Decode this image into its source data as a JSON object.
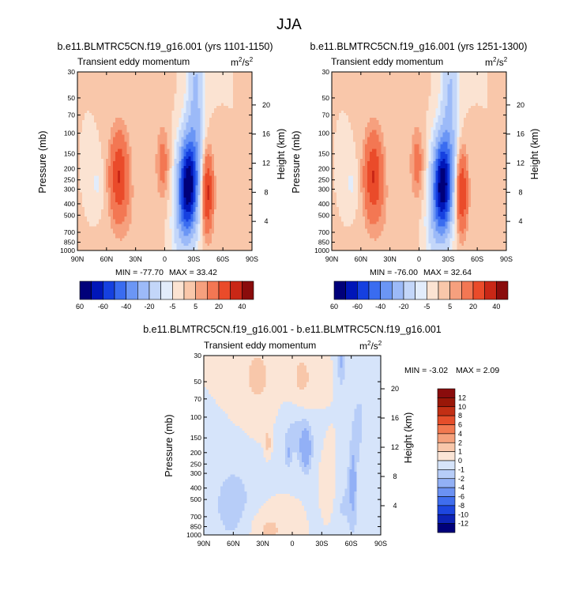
{
  "figure_title": "JJA",
  "chart_data": [
    {
      "type": "heatmap",
      "id": "panel-1",
      "title": "b.e11.BLMTRC5CN.f19_g16.001 (yrs 1101-1150)",
      "subtitle_left": "Transient eddy momentum",
      "units_base": "m",
      "units_sup1": "2",
      "units_mid": "/s",
      "units_sup2": "2",
      "ylabel": "Pressure (mb)",
      "ylabel_right": "Height (km)",
      "x_ticks": [
        "90N",
        "60N",
        "30N",
        "0",
        "30S",
        "60S",
        "90S"
      ],
      "y_ticks": [
        "30",
        "50",
        "70",
        "100",
        "150",
        "200",
        "250",
        "300",
        "400",
        "500",
        "700",
        "850",
        "1000"
      ],
      "y_ticks_right": [
        "20",
        "16",
        "12",
        "8",
        "4"
      ],
      "min_label": "MIN = -77.70",
      "max_label": "MAX = 33.42",
      "min": -77.7,
      "max": 33.42,
      "colorbar_ticks": [
        "-60",
        "-40",
        "-20",
        "-5",
        "5",
        "20",
        "40",
        "60"
      ],
      "features": [
        {
          "lat": -24,
          "p": 280,
          "sx": 7,
          "sy": 0.65,
          "amp": -78
        },
        {
          "lat": -15,
          "p": 650,
          "sx": 7,
          "sy": 0.5,
          "amp": -10
        },
        {
          "lat": -32,
          "p": 50,
          "sx": 6,
          "sy": 1.1,
          "amp": -22
        },
        {
          "lat": 47,
          "p": 230,
          "sx": 7,
          "sy": 0.6,
          "amp": 30
        },
        {
          "lat": -44,
          "p": 320,
          "sx": 4.5,
          "sy": 0.55,
          "amp": 33
        },
        {
          "lat": 2,
          "p": 180,
          "sx": 4.5,
          "sy": 0.45,
          "amp": 14
        },
        {
          "lat": 70,
          "p": 270,
          "sx": 5,
          "sy": 0.35,
          "amp": -6
        },
        {
          "lat": 28,
          "p": 600,
          "sx": 20,
          "sy": 0.6,
          "amp": 3
        },
        {
          "lat": 15,
          "p": 45,
          "sx": 14,
          "sy": 0.7,
          "amp": 2
        }
      ]
    },
    {
      "type": "heatmap",
      "id": "panel-2",
      "title": "b.e11.BLMTRC5CN.f19_g16.001 (yrs 1251-1300)",
      "subtitle_left": "Transient eddy momentum",
      "units_base": "m",
      "units_sup1": "2",
      "units_mid": "/s",
      "units_sup2": "2",
      "ylabel": "Pressure (mb)",
      "ylabel_right": "Height (km)",
      "x_ticks": [
        "90N",
        "60N",
        "30N",
        "0",
        "30S",
        "60S",
        "90S"
      ],
      "y_ticks": [
        "30",
        "50",
        "70",
        "100",
        "150",
        "200",
        "250",
        "300",
        "400",
        "500",
        "700",
        "850",
        "1000"
      ],
      "y_ticks_right": [
        "20",
        "16",
        "12",
        "8",
        "4"
      ],
      "min_label": "MIN = -76.00",
      "max_label": "MAX = 32.64",
      "min": -76.0,
      "max": 32.64,
      "colorbar_ticks": [
        "-60",
        "-40",
        "-20",
        "-5",
        "5",
        "20",
        "40",
        "60"
      ],
      "features": [
        {
          "lat": -24,
          "p": 280,
          "sx": 7,
          "sy": 0.65,
          "amp": -76
        },
        {
          "lat": -15,
          "p": 650,
          "sx": 7,
          "sy": 0.5,
          "amp": -10
        },
        {
          "lat": -32,
          "p": 50,
          "sx": 6,
          "sy": 1.1,
          "amp": -21
        },
        {
          "lat": 47,
          "p": 230,
          "sx": 7,
          "sy": 0.6,
          "amp": 30
        },
        {
          "lat": -44,
          "p": 320,
          "sx": 4.5,
          "sy": 0.55,
          "amp": 32
        },
        {
          "lat": 2,
          "p": 180,
          "sx": 4.5,
          "sy": 0.45,
          "amp": 14
        },
        {
          "lat": 70,
          "p": 270,
          "sx": 5,
          "sy": 0.35,
          "amp": -6
        },
        {
          "lat": 28,
          "p": 600,
          "sx": 20,
          "sy": 0.6,
          "amp": 3
        },
        {
          "lat": 15,
          "p": 45,
          "sx": 14,
          "sy": 0.7,
          "amp": 2
        }
      ]
    },
    {
      "type": "heatmap",
      "id": "panel-diff",
      "title": "b.e11.BLMTRC5CN.f19_g16.001 - b.e11.BLMTRC5CN.f19_g16.001",
      "subtitle_left": "Transient eddy momentum",
      "units_base": "m",
      "units_sup1": "2",
      "units_mid": "/s",
      "units_sup2": "2",
      "ylabel": "Pressure (mb)",
      "ylabel_right": "Height (km)",
      "x_ticks": [
        "90N",
        "60N",
        "30N",
        "0",
        "30S",
        "60S",
        "90S"
      ],
      "y_ticks": [
        "30",
        "50",
        "70",
        "100",
        "150",
        "200",
        "250",
        "300",
        "400",
        "500",
        "700",
        "850",
        "1000"
      ],
      "y_ticks_right": [
        "20",
        "16",
        "12",
        "8",
        "4"
      ],
      "min_label": "MIN = -3.02",
      "max_label": "MAX =  2.09",
      "min": -3.02,
      "max": 2.09,
      "colorbar_ticks": [
        "12",
        "10",
        "8",
        "6",
        "4",
        "2",
        "1",
        "0",
        "-1",
        "-2",
        "-4",
        "-6",
        "-8",
        "-10",
        "-12"
      ],
      "features": [
        {
          "lat": -14,
          "p": 190,
          "sx": 4,
          "sy": 0.3,
          "amp": -3
        },
        {
          "lat": 4,
          "p": 205,
          "sx": 2.5,
          "sy": 0.2,
          "amp": -1.5
        },
        {
          "lat": 25,
          "p": 165,
          "sx": 2,
          "sy": 0.15,
          "amp": 2
        },
        {
          "lat": -5,
          "p": 130,
          "sx": 12,
          "sy": 0.45,
          "amp": -1.4
        },
        {
          "lat": -50,
          "p": 32,
          "sx": 3,
          "sy": 0.4,
          "amp": -2.2
        },
        {
          "lat": -62,
          "p": 350,
          "sx": 3,
          "sy": 0.6,
          "amp": -2.3
        },
        {
          "lat": -68,
          "p": 110,
          "sx": 5,
          "sy": 0.5,
          "amp": -1.3
        },
        {
          "lat": -48,
          "p": 550,
          "sx": 12,
          "sy": 0.6,
          "amp": -1.2
        },
        {
          "lat": 60,
          "p": 550,
          "sx": 18,
          "sy": 0.7,
          "amp": -1.4
        },
        {
          "lat": -38,
          "p": 420,
          "sx": 6,
          "sy": 0.5,
          "amp": 1.5
        },
        {
          "lat": 35,
          "p": 45,
          "sx": 15,
          "sy": 0.6,
          "amp": 1.2
        },
        {
          "lat": -10,
          "p": 50,
          "sx": 10,
          "sy": 0.5,
          "amp": 1.3
        },
        {
          "lat": 25,
          "p": 900,
          "sx": 15,
          "sy": 0.3,
          "amp": 1.3
        }
      ]
    }
  ],
  "main_palette": [
    "#00007a",
    "#0016b8",
    "#1540e0",
    "#3a6cf0",
    "#6b96f5",
    "#9cbaf8",
    "#c3d6f9",
    "#e2ecfb",
    "#fbe3d2",
    "#f9c7aa",
    "#f6a07e",
    "#f37753",
    "#ea4b2a",
    "#c92716",
    "#8a0c0c"
  ],
  "diff_palette": [
    "#00007a",
    "#0d23b6",
    "#1d46df",
    "#3f6dee",
    "#6b91f3",
    "#92b0f6",
    "#b7cdf8",
    "#d6e4fa",
    "#fbe5d6",
    "#f8c7aa",
    "#f5a17c",
    "#f27950",
    "#e54e2a",
    "#c22f14",
    "#9a1708",
    "#8a0c0c"
  ]
}
